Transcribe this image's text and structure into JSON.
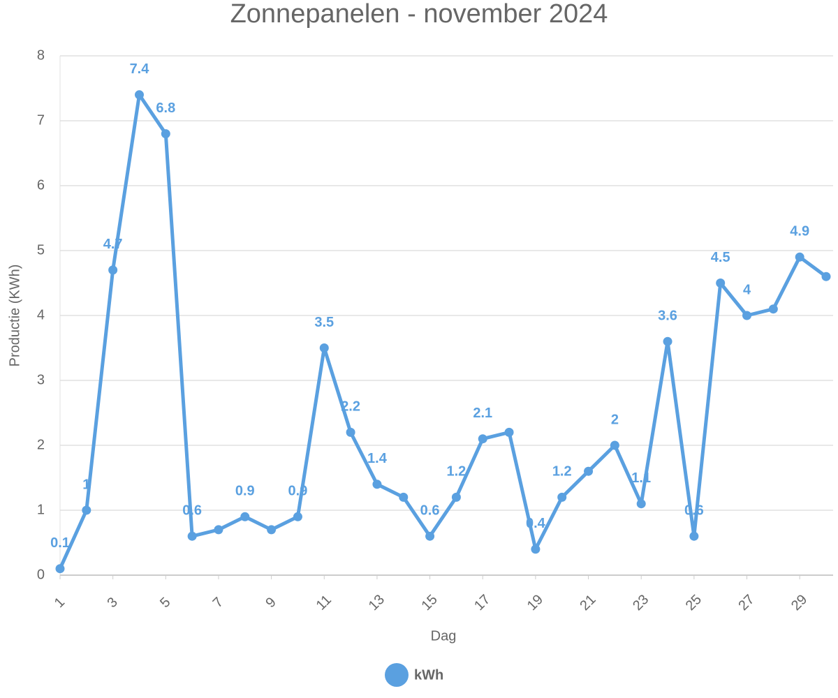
{
  "chart_data": {
    "type": "line",
    "title": "Zonnepanelen - november 2024",
    "x_label": "Dag",
    "y_label": "Productie (KWh)",
    "x": [
      1,
      2,
      3,
      4,
      5,
      6,
      7,
      8,
      9,
      10,
      11,
      12,
      13,
      14,
      15,
      16,
      17,
      18,
      19,
      20,
      21,
      22,
      23,
      24,
      25,
      26,
      27,
      28,
      29,
      30
    ],
    "series": [
      {
        "name": "kWh",
        "color": "#5aa0e0",
        "values": [
          0.1,
          1,
          4.7,
          7.4,
          6.8,
          0.6,
          0.7,
          0.9,
          0.7,
          0.9,
          3.5,
          2.2,
          1.4,
          1.2,
          0.6,
          1.2,
          2.1,
          2.2,
          0.4,
          1.2,
          1.6,
          2,
          1.1,
          3.6,
          0.6,
          4.5,
          4,
          4.1,
          4.9,
          4.6
        ],
        "value_labels": [
          "0.1",
          "1",
          "4.7",
          "7.4",
          "6.8",
          "0.6",
          null,
          "0.9",
          null,
          "0.9",
          "3.5",
          "2.2",
          "1.4",
          null,
          "0.6",
          "1.2",
          "2.1",
          null,
          "0.4",
          "1.2",
          null,
          "2",
          "1.1",
          "3.6",
          "0.6",
          "4.5",
          "4",
          null,
          "4.9",
          null
        ]
      }
    ],
    "xlim": [
      1,
      30
    ],
    "xticks": [
      1,
      3,
      5,
      7,
      9,
      11,
      13,
      15,
      17,
      19,
      21,
      23,
      25,
      27,
      29
    ],
    "ylim": [
      0,
      8
    ],
    "yticks": [
      0,
      1,
      2,
      3,
      4,
      5,
      6,
      7,
      8
    ],
    "grid": true,
    "legend": "bottom"
  }
}
